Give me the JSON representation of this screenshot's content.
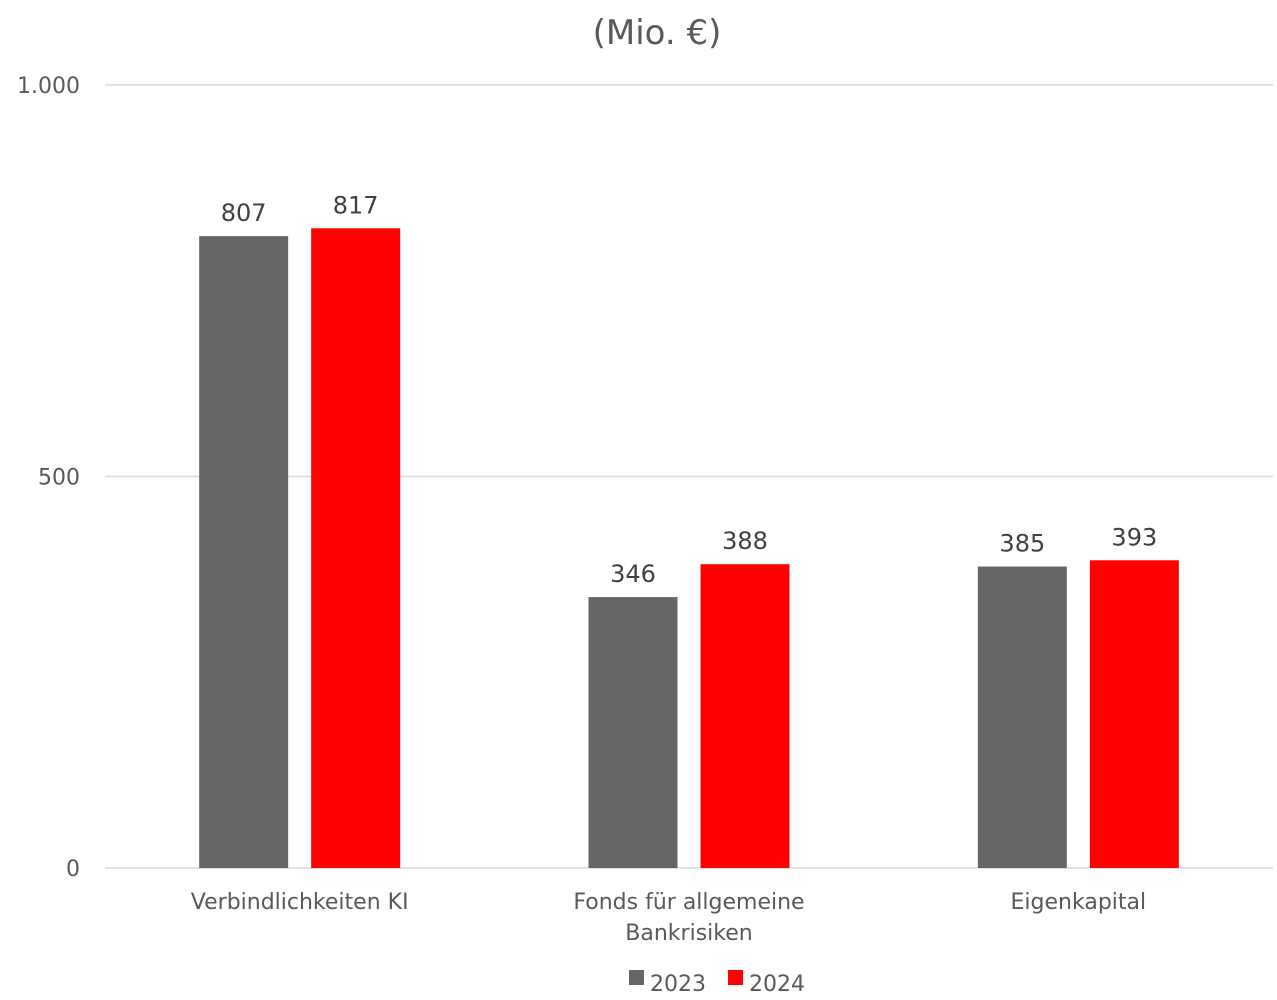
{
  "chart_data": {
    "type": "bar",
    "title": "(Mio. €)",
    "xlabel": "",
    "ylabel": "",
    "categories": [
      [
        "Verbindlichkeiten KI"
      ],
      [
        "Fonds für allgemeine",
        "Bankrisiken"
      ],
      [
        "Eigenkapital"
      ]
    ],
    "series": [
      {
        "name": "2023",
        "color": "#666666",
        "values": [
          807,
          346,
          385
        ]
      },
      {
        "name": "2024",
        "color": "#ff0000",
        "values": [
          817,
          388,
          393
        ]
      }
    ],
    "ylim": [
      0,
      1000
    ],
    "yticks": [
      {
        "value": 0,
        "label": "0"
      },
      {
        "value": 500,
        "label": "500"
      },
      {
        "value": 1000,
        "label": "1.000"
      }
    ],
    "grid": true,
    "legend_position": "bottom",
    "gridline_color": "#d9d9d9"
  }
}
